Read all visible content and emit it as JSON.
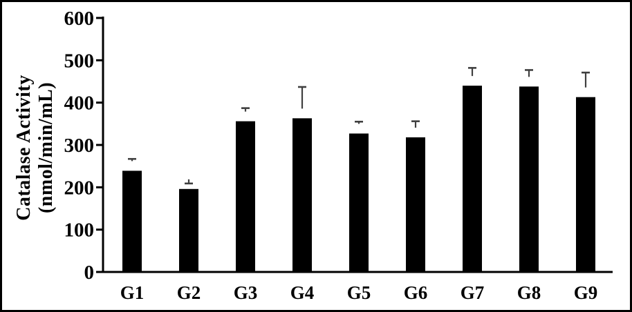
{
  "chart_data": {
    "type": "bar",
    "title": "",
    "categories": [
      "G1",
      "G2",
      "G3",
      "G4",
      "G5",
      "G6",
      "G7",
      "G8",
      "G9"
    ],
    "values": [
      239,
      196,
      356,
      363,
      327,
      318,
      440,
      438,
      413
    ],
    "errors_plus": [
      28,
      13,
      31,
      74,
      28,
      38,
      42,
      39,
      58
    ],
    "ylabel_lines": [
      "Catalase Activity",
      "(nmol/min/mL)"
    ],
    "xlabel": "",
    "ylim": [
      0,
      600
    ],
    "yticks": [
      0,
      100,
      200,
      300,
      400,
      500,
      600
    ],
    "grid": false,
    "legend": null,
    "bar_color": "#000000",
    "error_bar_color": "#3f3f3f",
    "axis_color": "#000000",
    "frame_border_color": "#000000"
  }
}
